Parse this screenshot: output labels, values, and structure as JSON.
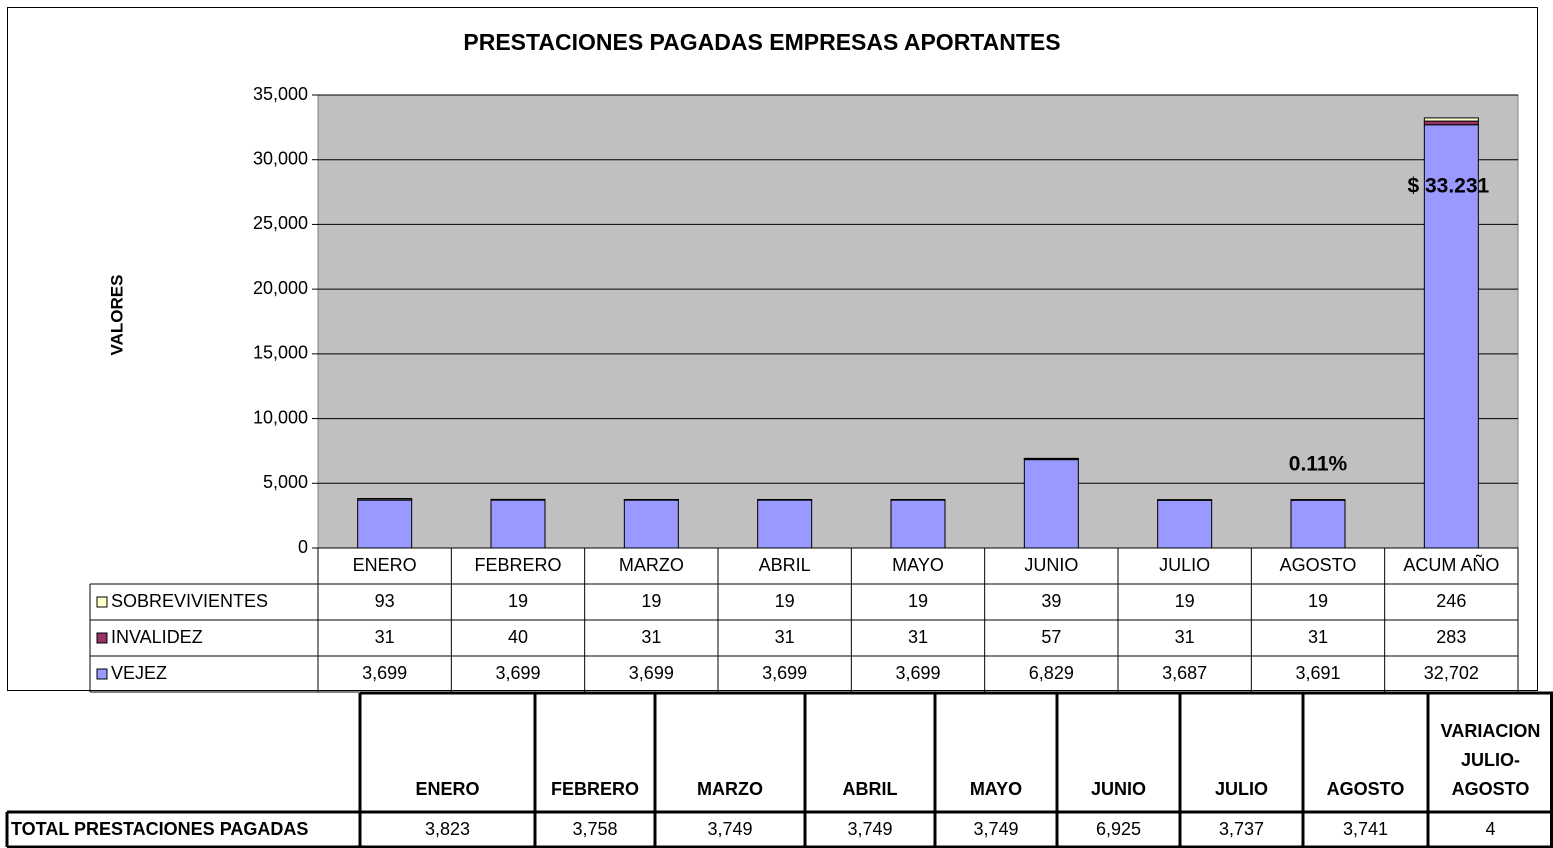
{
  "chart_data": {
    "type": "bar",
    "title": "PRESTACIONES PAGADAS EMPRESAS APORTANTES",
    "ylabel": "VALORES",
    "stacked": true,
    "grid": true,
    "categories": [
      "ENERO",
      "FEBRERO",
      "MARZO",
      "ABRIL",
      "MAYO",
      "JUNIO",
      "JULIO",
      "AGOSTO",
      "ACUM AÑO"
    ],
    "series": [
      {
        "name": "SOBREVIVIENTES",
        "color": "#ffffcc",
        "values": [
          93,
          19,
          19,
          19,
          19,
          39,
          19,
          19,
          246
        ]
      },
      {
        "name": "INVALIDEZ",
        "color": "#993366",
        "values": [
          31,
          40,
          31,
          31,
          31,
          57,
          31,
          31,
          283
        ]
      },
      {
        "name": "VEJEZ",
        "color": "#9999ff",
        "values": [
          3699,
          3699,
          3699,
          3699,
          3699,
          6829,
          3687,
          3691,
          32702
        ],
        "value_labels": [
          "3,699",
          "3,699",
          "3,699",
          "3,699",
          "3,699",
          "6,829",
          "3,687",
          "3,691",
          "32,702"
        ]
      }
    ],
    "ylim": [
      0,
      35000
    ],
    "yticks": [
      0,
      {
        "value": 5000,
        "label": "5,000"
      },
      {
        "value": 10000,
        "label": "10,000"
      },
      {
        "value": 15000,
        "label": "15,000"
      },
      {
        "value": 20000,
        "label": "20,000"
      },
      {
        "value": 25000,
        "label": "25,000"
      },
      {
        "value": 30000,
        "label": "30,000"
      },
      {
        "value": 35000,
        "label": "35,000"
      }
    ],
    "annotations": [
      {
        "text": "$ 33.231",
        "category": 8
      },
      {
        "text": "0.11%",
        "category": 7
      }
    ]
  },
  "table": {
    "headers": [
      "ENERO",
      "FEBRERO",
      "MARZO",
      "ABRIL",
      "MAYO",
      "JUNIO",
      "JULIO",
      "AGOSTO",
      "VARIACION JULIO- AGOSTO"
    ],
    "rows": [
      [
        "TOTAL PRESTACIONES PAGADAS",
        "3,823",
        "3,758",
        "3,749",
        "3,749",
        "3,749",
        "6,925",
        "3,737",
        "3,741",
        "4"
      ]
    ]
  }
}
